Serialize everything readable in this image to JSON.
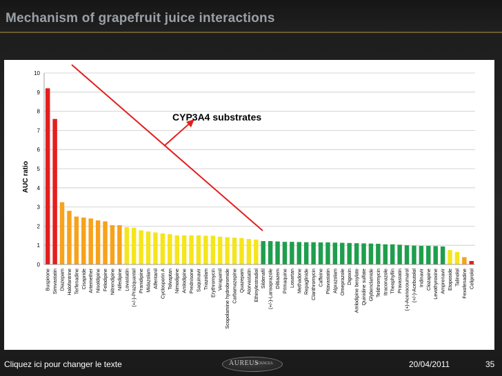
{
  "slide": {
    "title": "Mechanism of grapefruit juice interactions",
    "footer_text": "Cliquez ici pour changer le texte",
    "date": "20/04/2011",
    "page_number": "35",
    "logo_text": "AUREUS",
    "logo_subtext": "SCIENCES",
    "colors": {
      "background": "#1c1c1c",
      "title": "#9aa0a6",
      "accent_line": "#6b5a2e"
    }
  },
  "chart_data": {
    "type": "bar",
    "title": "",
    "xlabel": "",
    "ylabel": "AUC ratio",
    "ylim": [
      0,
      10
    ],
    "yticks": [
      0,
      1,
      2,
      3,
      4,
      5,
      6,
      7,
      8,
      9,
      10
    ],
    "grid": true,
    "categories": [
      "Buspirone",
      "Simvastatin",
      "Diazepam",
      "Halofantrine",
      "Terfenadine",
      "Cisapride",
      "Artemether",
      "Nisoldipine",
      "Felodipine",
      "Nitrendipine",
      "Nifedipine",
      "Lovastatin",
      "(+/-)-Praziquantel",
      "Pranidipine",
      "Midazolam",
      "Alfentanil",
      "Cyclosporin A",
      "Tolvaptan",
      "Nimodipine",
      "Amlodipine",
      "Prednisone",
      "Saquinavir",
      "Triazolam",
      "Erythromycin",
      "Verapamil",
      "Scopolamine hydrobromide",
      "Carbamazepine",
      "Quazepam",
      "Atorvastatin",
      "Ethinylestradiol",
      "Sildenafil",
      "(+/-)-Lansoprazole",
      "Diltiazem",
      "Primaquine",
      "Losartan",
      "Methadone",
      "Repaglinide",
      "Clarithromycin",
      "Caffeine",
      "Pitavastatin",
      "Alprazolam",
      "Omeprazole",
      "Digoxin",
      "Amlodipine besylate",
      "Quinidine sulfate",
      "Glybenclamide",
      "Telithromycin",
      "Itraconazole",
      "Theophyllin",
      "Pravastatin",
      "(+)-Acenocoumarol",
      "(+/-)-Acebutolol",
      "Indinavir",
      "Clozapine",
      "Levothyroxine",
      "Amprenavir",
      "Etoposide",
      "Talinolol",
      "Fexofenadine",
      "Celiprolol"
    ],
    "values": [
      9.2,
      7.6,
      3.25,
      2.8,
      2.5,
      2.45,
      2.4,
      2.3,
      2.25,
      2.05,
      2.05,
      1.95,
      1.92,
      1.78,
      1.72,
      1.67,
      1.62,
      1.58,
      1.52,
      1.52,
      1.52,
      1.52,
      1.5,
      1.5,
      1.45,
      1.42,
      1.4,
      1.38,
      1.33,
      1.3,
      1.22,
      1.22,
      1.2,
      1.18,
      1.18,
      1.17,
      1.16,
      1.16,
      1.15,
      1.15,
      1.14,
      1.13,
      1.12,
      1.11,
      1.1,
      1.09,
      1.08,
      1.05,
      1.05,
      1.03,
      1.0,
      0.98,
      0.97,
      0.97,
      0.96,
      0.94,
      0.75,
      0.65,
      0.38,
      0.18
    ],
    "bar_colors": [
      "#e41e1e",
      "#e41e1e",
      "#f7a21c",
      "#f7a21c",
      "#f7a21c",
      "#f7a21c",
      "#f7a21c",
      "#f7a21c",
      "#f7a21c",
      "#f7a21c",
      "#f7a21c",
      "#f5e51c",
      "#f5e51c",
      "#f5e51c",
      "#f5e51c",
      "#f5e51c",
      "#f5e51c",
      "#f5e51c",
      "#f5e51c",
      "#f5e51c",
      "#f5e51c",
      "#f5e51c",
      "#f5e51c",
      "#f5e51c",
      "#f5e51c",
      "#f5e51c",
      "#f5e51c",
      "#f5e51c",
      "#f5e51c",
      "#f5e51c",
      "#1f9e4d",
      "#1f9e4d",
      "#1f9e4d",
      "#1f9e4d",
      "#1f9e4d",
      "#1f9e4d",
      "#1f9e4d",
      "#1f9e4d",
      "#1f9e4d",
      "#1f9e4d",
      "#1f9e4d",
      "#1f9e4d",
      "#1f9e4d",
      "#1f9e4d",
      "#1f9e4d",
      "#1f9e4d",
      "#1f9e4d",
      "#1f9e4d",
      "#1f9e4d",
      "#1f9e4d",
      "#1f9e4d",
      "#1f9e4d",
      "#1f9e4d",
      "#1f9e4d",
      "#1f9e4d",
      "#1f9e4d",
      "#f5e51c",
      "#f5e51c",
      "#f7a21c",
      "#e41e1e"
    ],
    "annotation": {
      "text": "CYP3A4 substrates",
      "color": "#e41e1e"
    }
  }
}
